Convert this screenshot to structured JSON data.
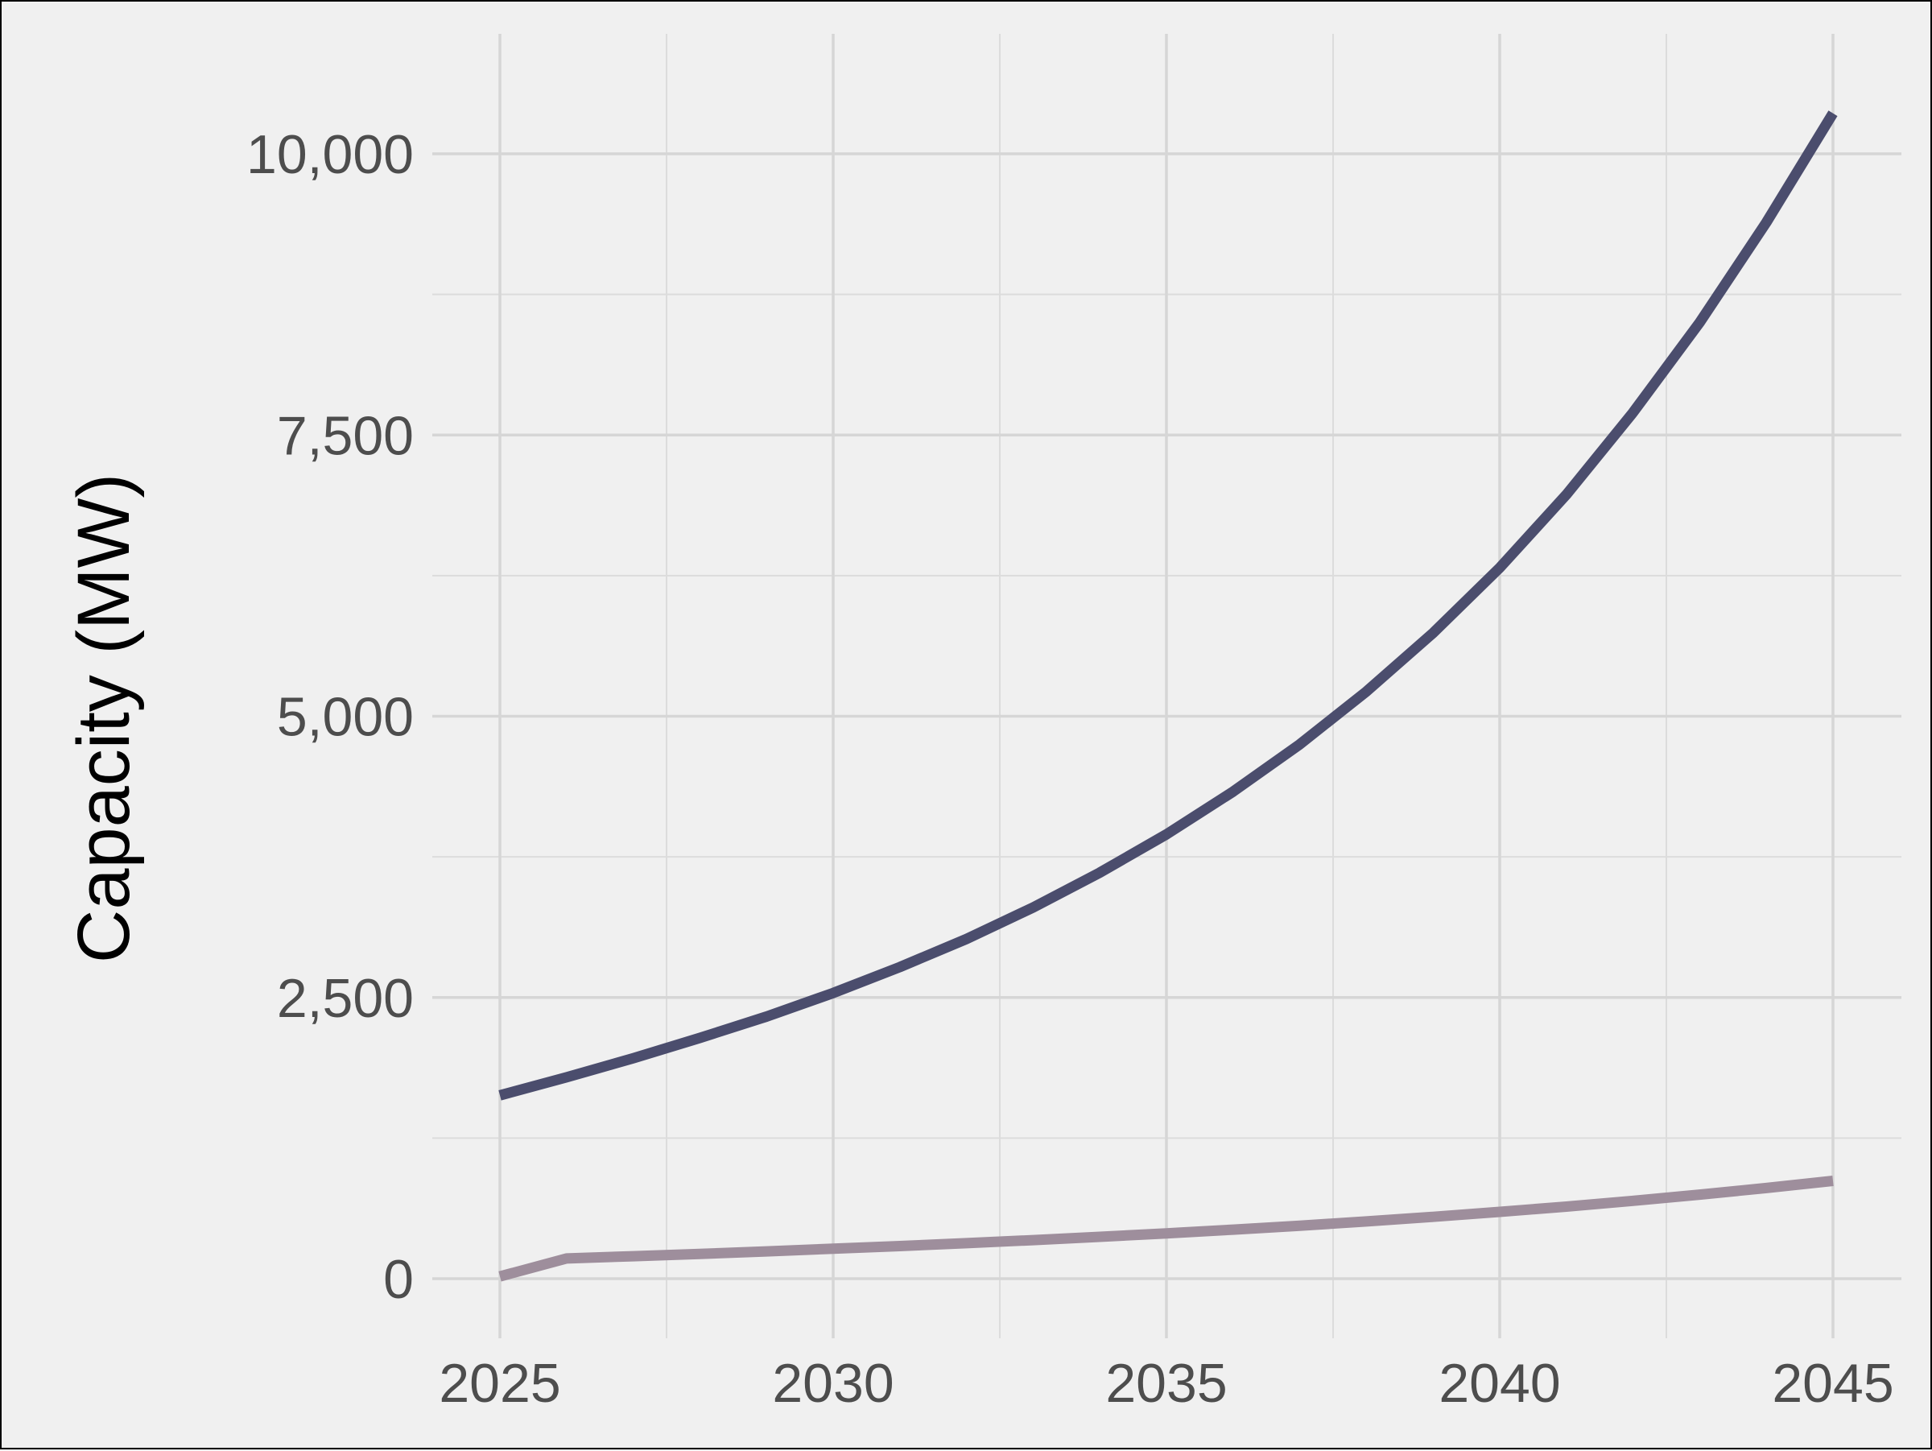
{
  "chart_data": {
    "type": "line",
    "title": "",
    "xlabel": "",
    "ylabel": "Capacity (MW)",
    "xlim": [
      2024.2,
      2045.2
    ],
    "ylim": [
      -200,
      10700
    ],
    "x_ticks": [
      2025,
      2030,
      2035,
      2040,
      2045
    ],
    "x_tick_labels": [
      "2025",
      "2030",
      "2035",
      "2040",
      "2045"
    ],
    "y_ticks": [
      0,
      2500,
      5000,
      7500,
      10000
    ],
    "y_tick_labels": [
      "0",
      "2,500",
      "5,000",
      "7,500",
      "10,000"
    ],
    "grid": true,
    "legend": "none",
    "x": [
      2025,
      2026,
      2027,
      2028,
      2029,
      2030,
      2031,
      2032,
      2033,
      2034,
      2035,
      2036,
      2037,
      2038,
      2039,
      2040,
      2041,
      2042,
      2043,
      2044,
      2045
    ],
    "series": [
      {
        "color": "#4b4d6d",
        "values": [
          1630,
          1790,
          1960,
          2140,
          2330,
          2540,
          2770,
          3020,
          3300,
          3610,
          3950,
          4330,
          4750,
          5220,
          5740,
          6320,
          6970,
          7700,
          8500,
          9390,
          10360
        ]
      },
      {
        "color": "#9e8e9c",
        "values": [
          20,
          180,
          200,
          220,
          243,
          266,
          290,
          316,
          343,
          372,
          403,
          436,
          471,
          509,
          550,
          594,
          641,
          692,
          747,
          806,
          870
        ]
      }
    ]
  }
}
